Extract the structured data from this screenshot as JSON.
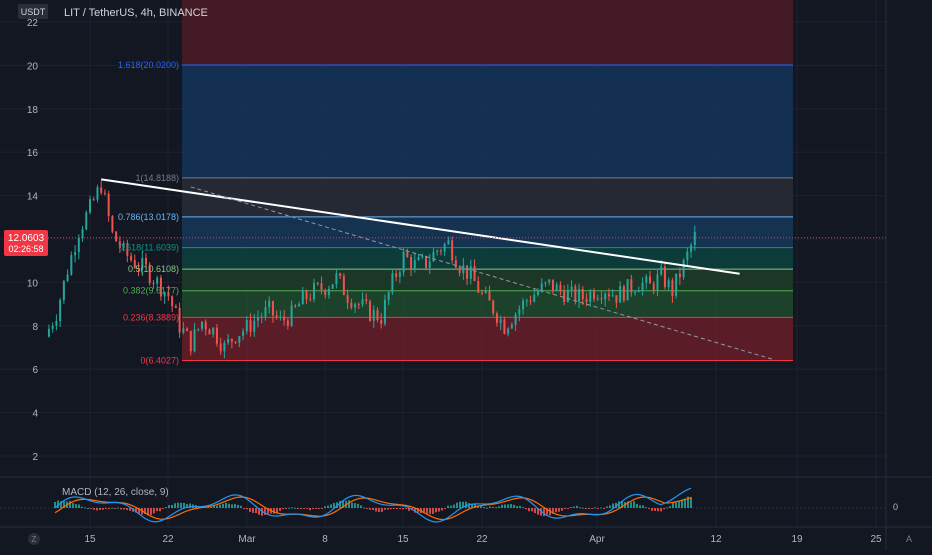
{
  "header": {
    "currency_badge": "USDT",
    "symbol_line": "LIT / TetherUS, 4h, BINANCE"
  },
  "price_tag": {
    "price": "12.0603",
    "countdown": "02:26:58",
    "color": "#f23645"
  },
  "macd_label": "MACD (12, 26, close, 9)",
  "macd_zero_label": "0",
  "footer": {
    "timezone_icon": "Z",
    "auto_label": "A"
  },
  "chart_data": {
    "type": "candlestick",
    "title": "LIT / TetherUS, 4h, BINANCE",
    "y_axis": {
      "ticks": [
        "2",
        "4",
        "6",
        "8",
        "10",
        "12",
        "14",
        "16",
        "18",
        "20",
        "22"
      ],
      "range": [
        0.8,
        22.4
      ]
    },
    "x_axis": {
      "ticks": [
        "15",
        "22",
        "Mar",
        "8",
        "15",
        "22",
        "Apr",
        "12",
        "19",
        "25"
      ]
    },
    "grid": true,
    "last_price": 12.0603,
    "fibonacci": {
      "levels": [
        {
          "ratio": "0",
          "label": "0(6.4027)",
          "price": 6.4027,
          "color": "#f23645"
        },
        {
          "ratio": "0.236",
          "label": "0.236(8.3889)",
          "price": 8.3889,
          "color": "#f23645"
        },
        {
          "ratio": "0.382",
          "label": "0.382(9.6177)",
          "price": 9.6177,
          "color": "#4caf50"
        },
        {
          "ratio": "0.5",
          "label": "0.5(10.6108)",
          "price": 10.6108,
          "color": "#81c784"
        },
        {
          "ratio": "0.618",
          "label": "0.618(11.6039)",
          "price": 11.6039,
          "color": "#089981"
        },
        {
          "ratio": "0.786",
          "label": "0.786(13.0178)",
          "price": 13.0178,
          "color": "#64b5f6"
        },
        {
          "ratio": "1",
          "label": "1(14.8188)",
          "price": 14.8188,
          "color": "#787b86"
        },
        {
          "ratio": "1.618",
          "label": "1.618(20.0200)",
          "price": 20.02,
          "color": "#2962ff"
        }
      ]
    },
    "trendline": {
      "from": [
        "Feb 16",
        14.75
      ],
      "to": [
        "Apr 14",
        10.4
      ],
      "color": "#ffffff"
    },
    "dashed_line": {
      "from": [
        "Feb 24",
        14.4
      ],
      "to": [
        "Apr 17",
        6.45
      ]
    },
    "candles_sketch": [
      {
        "t": "Feb 11",
        "price": 7.5
      },
      {
        "t": "Feb 12",
        "price": 8.6
      },
      {
        "t": "Feb 13",
        "price": 10.6
      },
      {
        "t": "Feb 14",
        "price": 12.4
      },
      {
        "t": "Feb 15",
        "price": 13.4
      },
      {
        "t": "Feb 16",
        "price": 14.5
      },
      {
        "t": "Feb 17",
        "price": 12.2
      },
      {
        "t": "Feb 18",
        "price": 11.4
      },
      {
        "t": "Feb 19",
        "price": 10.9
      },
      {
        "t": "Feb 20",
        "price": 10.6
      },
      {
        "t": "Feb 21",
        "price": 10.0
      },
      {
        "t": "Feb 22",
        "price": 9.4
      },
      {
        "t": "Feb 23",
        "price": 8.0
      },
      {
        "t": "Feb 24",
        "price": 7.2
      },
      {
        "t": "Feb 25",
        "price": 8.2
      },
      {
        "t": "Feb 26",
        "price": 7.8
      },
      {
        "t": "Feb 27",
        "price": 7.0
      },
      {
        "t": "Feb 28",
        "price": 7.6
      },
      {
        "t": "Mar 1",
        "price": 7.9
      },
      {
        "t": "Mar 2",
        "price": 8.4
      },
      {
        "t": "Mar 3",
        "price": 8.7
      },
      {
        "t": "Mar 4",
        "price": 8.2
      },
      {
        "t": "Mar 5",
        "price": 8.5
      },
      {
        "t": "Mar 6",
        "price": 9.2
      },
      {
        "t": "Mar 7",
        "price": 9.6
      },
      {
        "t": "Mar 8",
        "price": 9.8
      },
      {
        "t": "Mar 9",
        "price": 10.2
      },
      {
        "t": "Mar 10",
        "price": 9.4
      },
      {
        "t": "Mar 11",
        "price": 9.0
      },
      {
        "t": "Mar 12",
        "price": 8.6
      },
      {
        "t": "Mar 13",
        "price": 8.4
      },
      {
        "t": "Mar 14",
        "price": 10.0
      },
      {
        "t": "Mar 15",
        "price": 11.2
      },
      {
        "t": "Mar 16",
        "price": 10.8
      },
      {
        "t": "Mar 17",
        "price": 10.9
      },
      {
        "t": "Mar 18",
        "price": 11.5
      },
      {
        "t": "Mar 19",
        "price": 11.8
      },
      {
        "t": "Mar 20",
        "price": 10.8
      },
      {
        "t": "Mar 21",
        "price": 10.3
      },
      {
        "t": "Mar 22",
        "price": 9.4
      },
      {
        "t": "Mar 23",
        "price": 8.8
      },
      {
        "t": "Mar 24",
        "price": 8.0
      },
      {
        "t": "Mar 25",
        "price": 8.6
      },
      {
        "t": "Mar 26",
        "price": 9.2
      },
      {
        "t": "Mar 27",
        "price": 9.6
      },
      {
        "t": "Mar 28",
        "price": 9.9
      },
      {
        "t": "Mar 29",
        "price": 9.6
      },
      {
        "t": "Mar 30",
        "price": 9.4
      },
      {
        "t": "Mar 31",
        "price": 9.3
      },
      {
        "t": "Apr 1",
        "price": 9.6
      },
      {
        "t": "Apr 2",
        "price": 9.7
      },
      {
        "t": "Apr 3",
        "price": 9.4
      },
      {
        "t": "Apr 4",
        "price": 9.7
      },
      {
        "t": "Apr 5",
        "price": 10.0
      },
      {
        "t": "Apr 6",
        "price": 9.8
      },
      {
        "t": "Apr 7",
        "price": 10.3
      },
      {
        "t": "Apr 8",
        "price": 9.6
      },
      {
        "t": "Apr 9",
        "price": 10.8
      },
      {
        "t": "Apr 10",
        "price": 12.1
      }
    ],
    "colors": {
      "up": "#26a69a",
      "down": "#ef5350",
      "macd": "#2196f3",
      "signal": "#ff6d00"
    }
  }
}
